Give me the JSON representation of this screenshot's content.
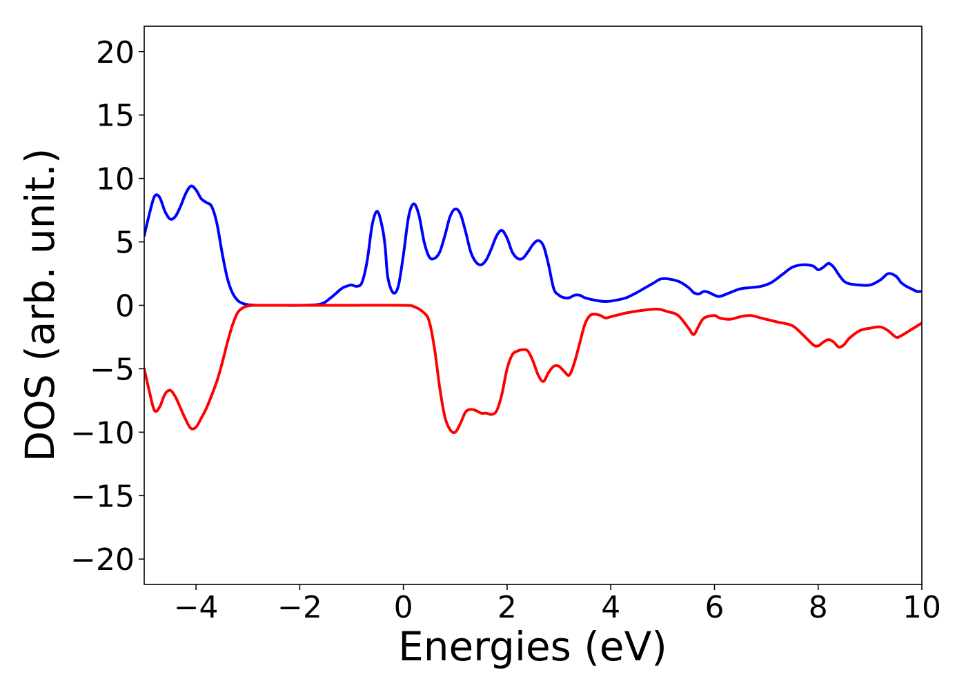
{
  "chart_data": {
    "type": "line",
    "title": "",
    "xlabel": "Energies (eV)",
    "ylabel": "DOS (arb. unit.)",
    "xlim": [
      -5,
      10
    ],
    "ylim": [
      -22,
      22
    ],
    "xticks": [
      -4,
      -2,
      0,
      2,
      4,
      6,
      8,
      10
    ],
    "yticks": [
      -20,
      -15,
      -10,
      -5,
      0,
      5,
      10,
      15,
      20
    ],
    "xtick_labels": [
      "−4",
      "−2",
      "0",
      "2",
      "4",
      "6",
      "8",
      "10"
    ],
    "ytick_labels": [
      "−20",
      "−15",
      "−10",
      "−5",
      "0",
      "5",
      "10",
      "15",
      "20"
    ],
    "grid": false,
    "legend": "none",
    "series": [
      {
        "color": "#0000ff",
        "x": [
          -5.0,
          -4.9,
          -4.8,
          -4.7,
          -4.6,
          -4.5,
          -4.4,
          -4.3,
          -4.2,
          -4.1,
          -4.0,
          -3.9,
          -3.8,
          -3.7,
          -3.6,
          -3.5,
          -3.4,
          -3.3,
          -3.2,
          -3.1,
          -3.0,
          -2.9,
          -2.8,
          -2.6,
          -2.4,
          -2.0,
          -1.6,
          -1.4,
          -1.2,
          -1.1,
          -1.0,
          -0.9,
          -0.8,
          -0.7,
          -0.6,
          -0.5,
          -0.4,
          -0.35,
          -0.3,
          -0.2,
          -0.1,
          0.0,
          0.1,
          0.2,
          0.3,
          0.4,
          0.5,
          0.6,
          0.7,
          0.8,
          0.9,
          1.0,
          1.1,
          1.2,
          1.3,
          1.4,
          1.5,
          1.6,
          1.7,
          1.8,
          1.9,
          2.0,
          2.1,
          2.2,
          2.3,
          2.4,
          2.5,
          2.6,
          2.7,
          2.8,
          2.9,
          3.0,
          3.1,
          3.2,
          3.3,
          3.4,
          3.5,
          3.7,
          3.9,
          4.1,
          4.3,
          4.5,
          4.8,
          5.0,
          5.3,
          5.5,
          5.6,
          5.7,
          5.8,
          5.9,
          6.0,
          6.1,
          6.3,
          6.5,
          6.7,
          6.9,
          7.1,
          7.3,
          7.5,
          7.7,
          7.9,
          8.0,
          8.1,
          8.2,
          8.3,
          8.4,
          8.5,
          8.6,
          8.8,
          9.0,
          9.2,
          9.35,
          9.5,
          9.6,
          9.7,
          9.8,
          9.9,
          10.0
        ],
        "y": [
          5.5,
          7.2,
          8.6,
          8.5,
          7.4,
          6.8,
          7.0,
          7.8,
          8.8,
          9.4,
          9.1,
          8.4,
          8.1,
          7.8,
          6.5,
          4.2,
          2.2,
          1.0,
          0.4,
          0.15,
          0.05,
          0.02,
          0.0,
          0.0,
          0.0,
          0.0,
          0.1,
          0.6,
          1.3,
          1.5,
          1.6,
          1.5,
          1.8,
          3.5,
          6.4,
          7.4,
          6.0,
          4.5,
          2.2,
          1.0,
          1.5,
          4.0,
          7.0,
          8.0,
          7.1,
          5.0,
          3.8,
          3.7,
          4.2,
          5.5,
          7.0,
          7.6,
          7.2,
          5.8,
          4.2,
          3.4,
          3.2,
          3.6,
          4.5,
          5.5,
          5.9,
          5.3,
          4.2,
          3.7,
          3.7,
          4.2,
          4.8,
          5.1,
          4.7,
          3.2,
          1.3,
          0.8,
          0.6,
          0.6,
          0.8,
          0.8,
          0.6,
          0.4,
          0.3,
          0.4,
          0.6,
          1.0,
          1.7,
          2.1,
          1.9,
          1.4,
          1.0,
          0.9,
          1.1,
          1.0,
          0.8,
          0.7,
          1.0,
          1.3,
          1.4,
          1.5,
          1.8,
          2.4,
          3.0,
          3.2,
          3.1,
          2.8,
          3.0,
          3.3,
          3.0,
          2.4,
          1.9,
          1.7,
          1.6,
          1.6,
          2.0,
          2.5,
          2.3,
          1.8,
          1.5,
          1.3,
          1.1,
          1.1
        ]
      },
      {
        "color": "#ff0000",
        "x": [
          -5.0,
          -4.9,
          -4.8,
          -4.7,
          -4.6,
          -4.5,
          -4.4,
          -4.3,
          -4.2,
          -4.1,
          -4.0,
          -3.9,
          -3.8,
          -3.7,
          -3.6,
          -3.5,
          -3.4,
          -3.3,
          -3.2,
          -3.1,
          -3.0,
          -2.9,
          -2.8,
          -2.6,
          -2.4,
          -2.0,
          -1.0,
          0.0,
          0.2,
          0.4,
          0.5,
          0.6,
          0.7,
          0.8,
          0.9,
          1.0,
          1.1,
          1.2,
          1.3,
          1.4,
          1.5,
          1.6,
          1.7,
          1.8,
          1.9,
          2.0,
          2.1,
          2.2,
          2.3,
          2.4,
          2.5,
          2.6,
          2.7,
          2.8,
          2.9,
          3.0,
          3.1,
          3.2,
          3.3,
          3.4,
          3.5,
          3.6,
          3.7,
          3.8,
          3.9,
          4.0,
          4.3,
          4.6,
          4.9,
          5.1,
          5.3,
          5.5,
          5.6,
          5.7,
          5.8,
          6.0,
          6.1,
          6.3,
          6.5,
          6.7,
          6.9,
          7.2,
          7.5,
          7.7,
          7.9,
          8.0,
          8.1,
          8.2,
          8.3,
          8.4,
          8.5,
          8.6,
          8.8,
          9.0,
          9.2,
          9.35,
          9.5,
          9.6,
          9.8,
          10.0
        ],
        "y": [
          -5.0,
          -6.8,
          -8.3,
          -8.0,
          -7.0,
          -6.7,
          -7.2,
          -8.1,
          -9.0,
          -9.7,
          -9.6,
          -8.9,
          -8.1,
          -7.1,
          -6.0,
          -4.6,
          -3.0,
          -1.6,
          -0.6,
          -0.2,
          -0.05,
          0.0,
          0.0,
          0.0,
          0.0,
          0.0,
          0.0,
          0.0,
          -0.1,
          -0.6,
          -1.3,
          -3.4,
          -6.5,
          -8.8,
          -9.8,
          -10.0,
          -9.3,
          -8.4,
          -8.2,
          -8.3,
          -8.5,
          -8.5,
          -8.6,
          -8.3,
          -7.0,
          -5.0,
          -3.9,
          -3.6,
          -3.5,
          -3.6,
          -4.4,
          -5.5,
          -6.0,
          -5.3,
          -4.8,
          -4.8,
          -5.2,
          -5.5,
          -4.5,
          -3.0,
          -1.5,
          -0.8,
          -0.7,
          -0.8,
          -1.0,
          -0.9,
          -0.6,
          -0.4,
          -0.3,
          -0.5,
          -0.8,
          -1.8,
          -2.3,
          -1.6,
          -1.0,
          -0.8,
          -1.0,
          -1.1,
          -0.9,
          -0.8,
          -1.0,
          -1.3,
          -1.6,
          -2.3,
          -3.1,
          -3.2,
          -2.9,
          -2.7,
          -2.9,
          -3.3,
          -3.1,
          -2.6,
          -2.0,
          -1.8,
          -1.7,
          -2.0,
          -2.5,
          -2.4,
          -1.9,
          -1.4
        ]
      }
    ]
  }
}
